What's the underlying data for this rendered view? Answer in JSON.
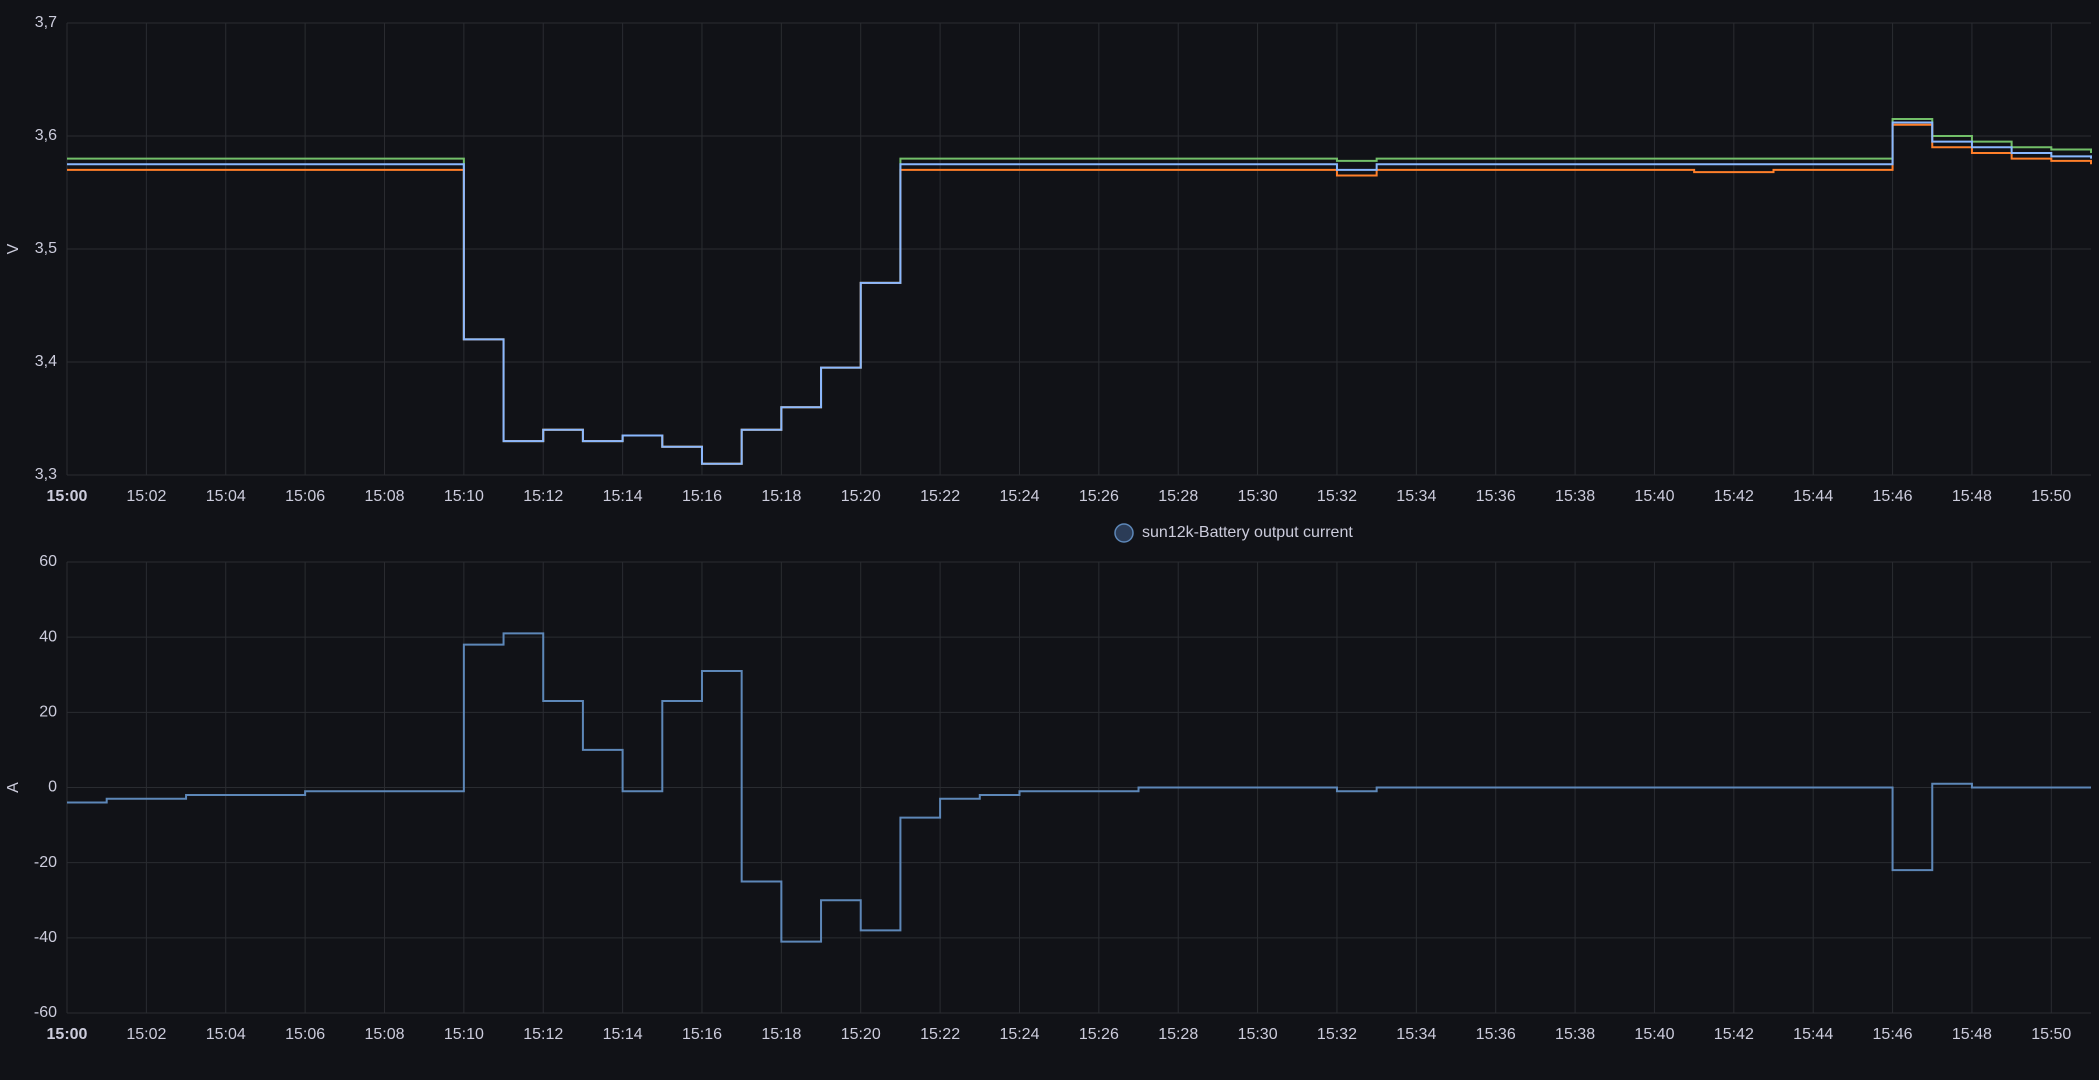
{
  "chart_data": [
    {
      "type": "line",
      "y_label": "V",
      "x": [
        "15:00",
        "15:01",
        "15:02",
        "15:03",
        "15:04",
        "15:05",
        "15:06",
        "15:07",
        "15:08",
        "15:09",
        "15:10",
        "15:11",
        "15:12",
        "15:13",
        "15:14",
        "15:15",
        "15:16",
        "15:17",
        "15:18",
        "15:19",
        "15:20",
        "15:21",
        "15:22",
        "15:23",
        "15:24",
        "15:25",
        "15:26",
        "15:27",
        "15:28",
        "15:29",
        "15:30",
        "15:31",
        "15:32",
        "15:33",
        "15:34",
        "15:35",
        "15:36",
        "15:37",
        "15:38",
        "15:39",
        "15:40",
        "15:41",
        "15:42",
        "15:43",
        "15:44",
        "15:45",
        "15:46",
        "15:47",
        "15:48",
        "15:49",
        "15:50",
        "15:51"
      ],
      "series": [
        {
          "color": "#73bf69",
          "values": [
            3.58,
            3.58,
            3.58,
            3.58,
            3.58,
            3.58,
            3.58,
            3.58,
            3.58,
            3.58,
            3.42,
            3.33,
            3.34,
            3.33,
            3.335,
            3.325,
            3.31,
            3.34,
            3.36,
            3.395,
            3.47,
            3.58,
            3.58,
            3.58,
            3.58,
            3.58,
            3.58,
            3.58,
            3.58,
            3.58,
            3.58,
            3.58,
            3.578,
            3.58,
            3.58,
            3.58,
            3.58,
            3.58,
            3.58,
            3.58,
            3.58,
            3.58,
            3.58,
            3.58,
            3.58,
            3.58,
            3.615,
            3.6,
            3.595,
            3.59,
            3.588,
            3.585
          ]
        },
        {
          "color": "#ff7f2a",
          "values": [
            3.57,
            3.57,
            3.57,
            3.57,
            3.57,
            3.57,
            3.57,
            3.57,
            3.57,
            3.57,
            3.42,
            3.33,
            3.34,
            3.33,
            3.335,
            3.325,
            3.31,
            3.34,
            3.36,
            3.395,
            3.47,
            3.57,
            3.57,
            3.57,
            3.57,
            3.57,
            3.57,
            3.57,
            3.57,
            3.57,
            3.57,
            3.57,
            3.565,
            3.57,
            3.57,
            3.57,
            3.57,
            3.57,
            3.57,
            3.57,
            3.57,
            3.568,
            3.568,
            3.57,
            3.57,
            3.57,
            3.61,
            3.59,
            3.585,
            3.58,
            3.578,
            3.575
          ]
        },
        {
          "color": "#8ab8ff",
          "values": [
            3.575,
            3.575,
            3.575,
            3.575,
            3.575,
            3.575,
            3.575,
            3.575,
            3.575,
            3.575,
            3.42,
            3.33,
            3.34,
            3.33,
            3.335,
            3.325,
            3.31,
            3.34,
            3.36,
            3.395,
            3.47,
            3.575,
            3.575,
            3.575,
            3.575,
            3.575,
            3.575,
            3.575,
            3.575,
            3.575,
            3.575,
            3.575,
            3.57,
            3.575,
            3.575,
            3.575,
            3.575,
            3.575,
            3.575,
            3.575,
            3.575,
            3.575,
            3.575,
            3.575,
            3.575,
            3.575,
            3.612,
            3.595,
            3.59,
            3.585,
            3.582,
            3.58
          ]
        }
      ],
      "xlim": [
        "15:00",
        "15:51"
      ],
      "xticks": [
        "15:00",
        "15:02",
        "15:04",
        "15:06",
        "15:08",
        "15:10",
        "15:12",
        "15:14",
        "15:16",
        "15:18",
        "15:20",
        "15:22",
        "15:24",
        "15:26",
        "15:28",
        "15:30",
        "15:32",
        "15:34",
        "15:36",
        "15:38",
        "15:40",
        "15:42",
        "15:44",
        "15:46",
        "15:48",
        "15:50"
      ],
      "ylim": [
        3.3,
        3.7
      ],
      "yticks": [
        {
          "value": 3.3,
          "label": "3,3"
        },
        {
          "value": 3.4,
          "label": "3,4"
        },
        {
          "value": 3.5,
          "label": "3,5"
        },
        {
          "value": 3.6,
          "label": "3,6"
        },
        {
          "value": 3.7,
          "label": "3,7"
        }
      ],
      "grid": true
    },
    {
      "type": "line",
      "y_label": "A",
      "x": [
        "15:00",
        "15:01",
        "15:02",
        "15:03",
        "15:04",
        "15:05",
        "15:06",
        "15:07",
        "15:08",
        "15:09",
        "15:10",
        "15:11",
        "15:12",
        "15:13",
        "15:14",
        "15:15",
        "15:16",
        "15:17",
        "15:18",
        "15:19",
        "15:20",
        "15:21",
        "15:22",
        "15:23",
        "15:24",
        "15:25",
        "15:26",
        "15:27",
        "15:28",
        "15:29",
        "15:30",
        "15:31",
        "15:32",
        "15:33",
        "15:34",
        "15:35",
        "15:36",
        "15:37",
        "15:38",
        "15:39",
        "15:40",
        "15:41",
        "15:42",
        "15:43",
        "15:44",
        "15:45",
        "15:46",
        "15:47",
        "15:48",
        "15:49",
        "15:50",
        "15:51"
      ],
      "series": [
        {
          "name": "sun12k-Battery output current",
          "color": "#5d87b8",
          "values": [
            -4,
            -3,
            -3,
            -2,
            -2,
            -2,
            -1,
            -1,
            -1,
            -1,
            38,
            41,
            23,
            10,
            -1,
            23,
            31,
            -25,
            -41,
            -30,
            -38,
            -8,
            -3,
            -2,
            -1,
            -1,
            -1,
            0,
            0,
            0,
            0,
            0,
            -1,
            0,
            0,
            0,
            0,
            0,
            0,
            0,
            0,
            0,
            0,
            0,
            0,
            0,
            -22,
            1,
            0,
            0,
            0,
            0
          ]
        }
      ],
      "xlim": [
        "15:00",
        "15:51"
      ],
      "xticks": [
        "15:00",
        "15:02",
        "15:04",
        "15:06",
        "15:08",
        "15:10",
        "15:12",
        "15:14",
        "15:16",
        "15:18",
        "15:20",
        "15:22",
        "15:24",
        "15:26",
        "15:28",
        "15:30",
        "15:32",
        "15:34",
        "15:36",
        "15:38",
        "15:40",
        "15:42",
        "15:44",
        "15:46",
        "15:48",
        "15:50"
      ],
      "ylim": [
        -60,
        60
      ],
      "yticks": [
        -60,
        -40,
        -20,
        0,
        20,
        40,
        60
      ],
      "grid": true,
      "legend": "top"
    }
  ]
}
